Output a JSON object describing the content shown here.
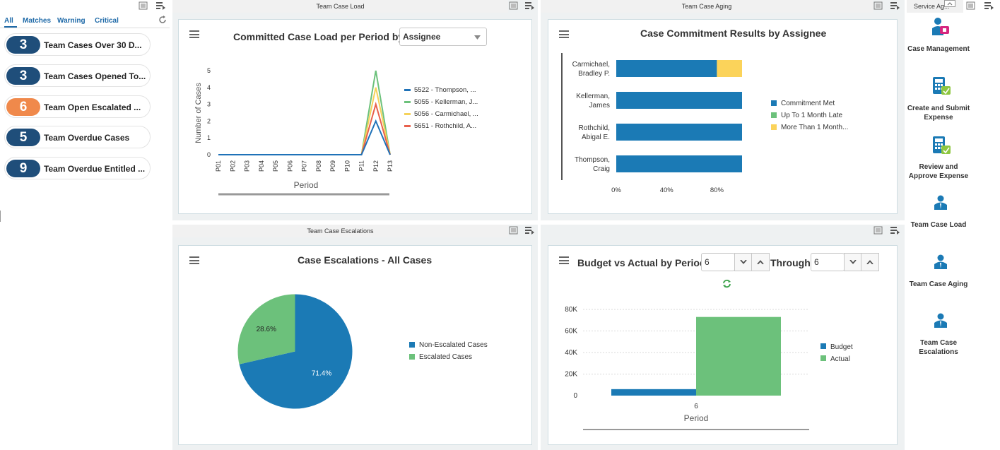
{
  "watchlist": {
    "tabs": [
      "All",
      "Matches",
      "Warning",
      "Critical"
    ],
    "items": [
      {
        "count": "3",
        "label": "Team Cases Over 30 D...",
        "color": "#1f4e7a"
      },
      {
        "count": "3",
        "label": "Team Cases Opened To...",
        "color": "#1f4e7a"
      },
      {
        "count": "6",
        "label": "Team Open Escalated ...",
        "color": "#f0894b"
      },
      {
        "count": "5",
        "label": "Team Overdue Cases",
        "color": "#1f4e7a"
      },
      {
        "count": "9",
        "label": "Team Overdue Entitled ...",
        "color": "#1f4e7a"
      }
    ]
  },
  "panels": {
    "case_load": {
      "header": "Team Case Load",
      "title": "Committed Case Load per Period by",
      "select_value": "Assignee"
    },
    "case_aging": {
      "header": "Team Case Aging",
      "title": "Case Commitment Results by Assignee"
    },
    "escalations": {
      "header": "Team Case Escalations",
      "title": "Case Escalations - All Cases"
    },
    "budget": {
      "title": "Budget vs Actual by Period",
      "from_value": "6",
      "through_label": "Through",
      "through_value": "6"
    },
    "service": {
      "header": "Service Ag..."
    }
  },
  "chart_data": [
    {
      "type": "line",
      "title": "Committed Case Load per Period by Assignee",
      "xlabel": "Period",
      "ylabel": "Number of Cases",
      "categories": [
        "P01",
        "P02",
        "P03",
        "P04",
        "P05",
        "P06",
        "P07",
        "P08",
        "P09",
        "P10",
        "P11",
        "P12",
        "P13"
      ],
      "ylim": [
        0,
        5
      ],
      "yticks": [
        "0",
        "1",
        "2",
        "3",
        "4",
        "5"
      ],
      "series": [
        {
          "name": "5522 - Thompson, ...",
          "color": "#1f72b8",
          "values": [
            0,
            0,
            0,
            0,
            0,
            0,
            0,
            0,
            0,
            0,
            0,
            2,
            0
          ]
        },
        {
          "name": "5055 - Kellerman, J...",
          "color": "#6cc17b",
          "values": [
            0,
            0,
            0,
            0,
            0,
            0,
            0,
            0,
            0,
            0,
            0,
            5,
            0
          ]
        },
        {
          "name": "5056 - Carmichael, ...",
          "color": "#f5d25a",
          "values": [
            0,
            0,
            0,
            0,
            0,
            0,
            0,
            0,
            0,
            0,
            0,
            4,
            0
          ]
        },
        {
          "name": "5651 - Rothchild, A...",
          "color": "#e8604c",
          "values": [
            0,
            0,
            0,
            0,
            0,
            0,
            0,
            0,
            0,
            0,
            0,
            3,
            0
          ]
        }
      ]
    },
    {
      "type": "bar",
      "orientation": "horizontal",
      "stacked": true,
      "title": "Case Commitment Results by Assignee",
      "categories": [
        "Carmichael, Bradley P.",
        "Kellerman, James",
        "Rothchild, Abigal E.",
        "Thompson, Craig"
      ],
      "xlim": [
        0,
        100
      ],
      "xticks": [
        "0%",
        "40%",
        "80%"
      ],
      "series": [
        {
          "name": "Commitment Met",
          "color": "#1b7ab5",
          "values": [
            80,
            100,
            100,
            100
          ]
        },
        {
          "name": "Up To 1 Month Late",
          "color": "#6cc17b",
          "values": [
            0,
            0,
            0,
            0
          ]
        },
        {
          "name": "More Than 1 Month...",
          "color": "#fbd35a",
          "values": [
            20,
            0,
            0,
            0
          ]
        }
      ]
    },
    {
      "type": "pie",
      "title": "Case Escalations - All Cases",
      "slices": [
        {
          "name": "Non-Escalated Cases",
          "value": 71.4,
          "label": "71.4%",
          "color": "#1b7ab5"
        },
        {
          "name": "Escalated Cases",
          "value": 28.6,
          "label": "28.6%",
          "color": "#6cc17b"
        }
      ]
    },
    {
      "type": "bar",
      "title": "Budget vs Actual by Period",
      "xlabel": "Period",
      "categories": [
        "6"
      ],
      "ylim": [
        0,
        80000
      ],
      "yticks": [
        "0",
        "20K",
        "40K",
        "60K",
        "80K"
      ],
      "series": [
        {
          "name": "Budget",
          "color": "#1b7ab5",
          "values": [
            6000
          ]
        },
        {
          "name": "Actual",
          "color": "#6cc17b",
          "values": [
            73000
          ]
        }
      ]
    }
  ],
  "launchpad": [
    {
      "label": "Case Management",
      "icon": "case-management-icon"
    },
    {
      "label": "Create and Submit Expense",
      "icon": "calculator-icon"
    },
    {
      "label": "Review and Approve Expense",
      "icon": "calculator-icon"
    },
    {
      "label": "Team Case Load",
      "icon": "person-icon"
    },
    {
      "label": "Team Case Aging",
      "icon": "person-icon"
    },
    {
      "label": "Team Case Escalations",
      "icon": "person-icon"
    }
  ]
}
